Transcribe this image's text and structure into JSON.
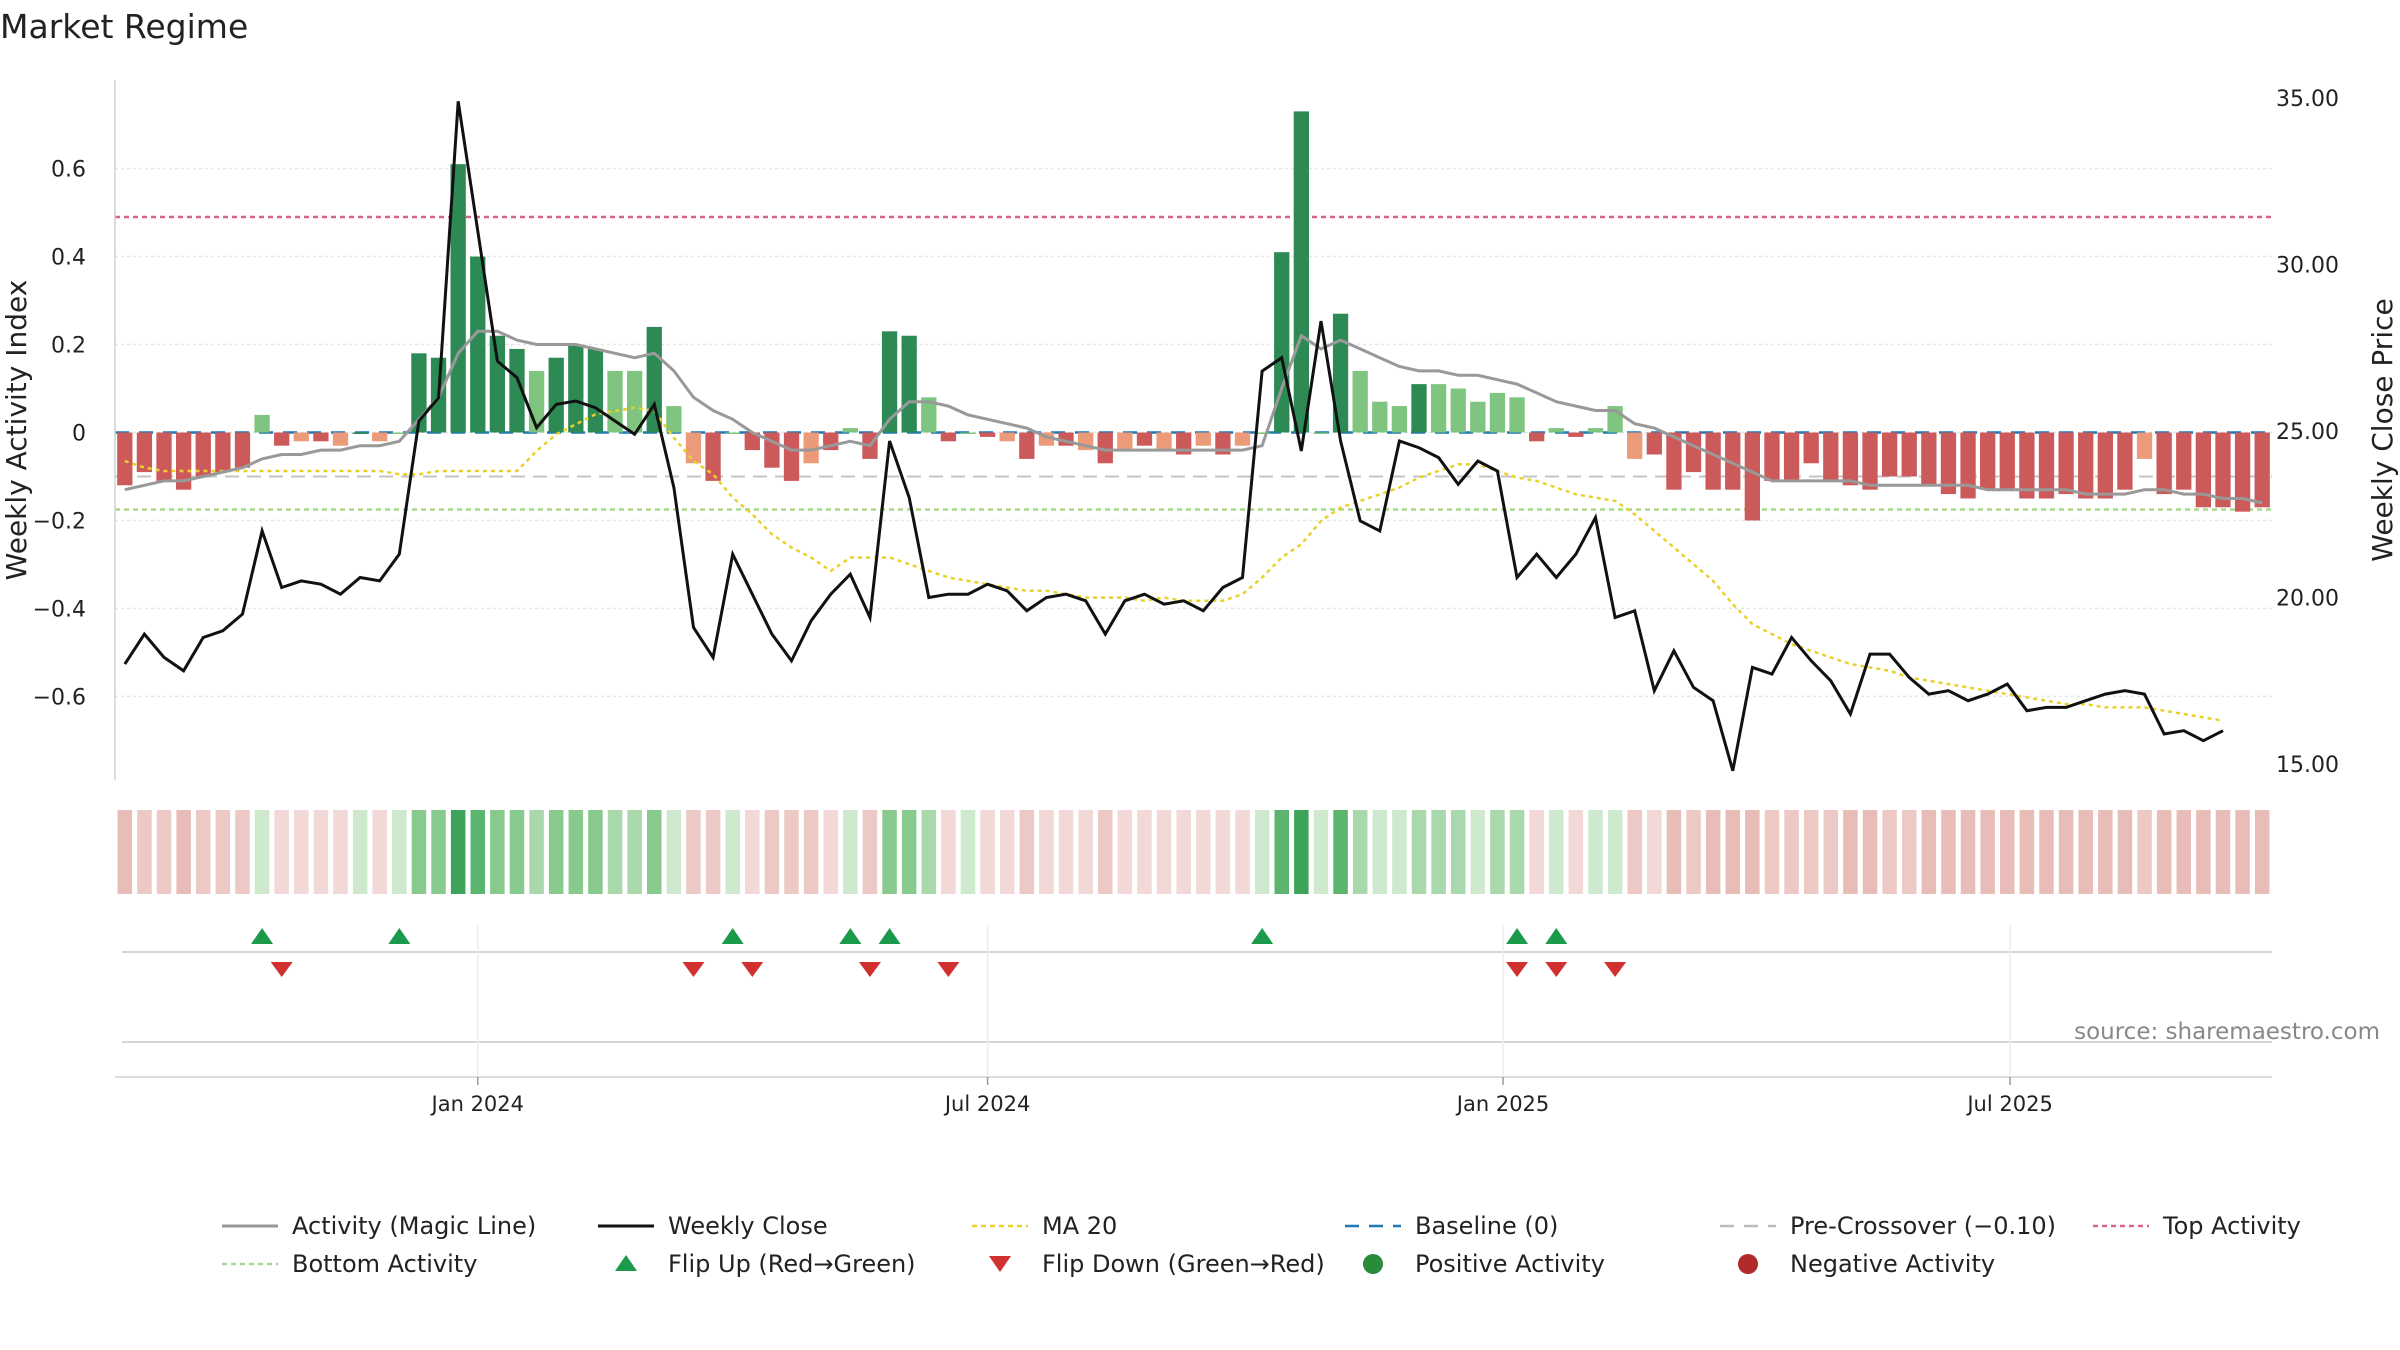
{
  "chart_data": {
    "type": "bar",
    "title": "Market Regime",
    "ylabel_left": "Weekly Activity Index",
    "ylabel_right": "Weekly Close Price",
    "source": "source: sharemaestro.com",
    "x_start": "2023-08-28",
    "x_step_days": 7,
    "date_ticks": [
      {
        "label": "Jan 2024",
        "date": "2024-01-01"
      },
      {
        "label": "Jul 2024",
        "date": "2024-07-01"
      },
      {
        "label": "Jan 2025",
        "date": "2025-01-01"
      },
      {
        "label": "Jul 2025",
        "date": "2025-07-01"
      }
    ],
    "left_axis": {
      "ticks": [
        "0.6",
        "0.4",
        "0.2",
        "0",
        "−0.2",
        "−0.4",
        "−0.6"
      ],
      "tick_values": [
        0.6,
        0.4,
        0.2,
        0,
        -0.2,
        -0.4,
        -0.6
      ],
      "ylim": [
        -0.79,
        0.79
      ]
    },
    "right_axis": {
      "ticks": [
        "35.00",
        "30.00",
        "25.00",
        "20.00",
        "15.00"
      ],
      "tick_values": [
        35,
        30,
        25,
        20,
        15
      ],
      "ylim": [
        15,
        35
      ]
    },
    "reference_lines": {
      "top_activity": 0.49,
      "bottom_activity": -0.175,
      "pre_crossover": -0.1,
      "baseline": 0
    },
    "activity": [
      -0.12,
      -0.09,
      -0.11,
      -0.13,
      -0.1,
      -0.09,
      -0.08,
      0.04,
      -0.03,
      -0.02,
      -0.02,
      -0.03,
      0.0,
      -0.02,
      0.0,
      0.18,
      0.17,
      0.61,
      0.4,
      0.22,
      0.19,
      0.14,
      0.17,
      0.2,
      0.19,
      0.14,
      0.14,
      0.24,
      0.06,
      -0.07,
      -0.11,
      0.0,
      -0.04,
      -0.08,
      -0.11,
      -0.07,
      -0.04,
      0.01,
      -0.06,
      0.23,
      0.22,
      0.08,
      -0.02,
      0.0,
      -0.01,
      -0.02,
      -0.06,
      -0.03,
      -0.03,
      -0.04,
      -0.07,
      -0.04,
      -0.03,
      -0.04,
      -0.05,
      -0.03,
      -0.05,
      -0.03,
      0.0,
      0.41,
      0.73,
      0.0,
      0.27,
      0.14,
      0.07,
      0.06,
      0.11,
      0.11,
      0.1,
      0.07,
      0.09,
      0.08,
      -0.02,
      0.01,
      -0.01,
      0.01,
      0.06,
      -0.06,
      -0.05,
      -0.13,
      -0.09,
      -0.13,
      -0.13,
      -0.2,
      -0.11,
      -0.11,
      -0.07,
      -0.11,
      -0.12,
      -0.13,
      -0.1,
      -0.1,
      -0.12,
      -0.14,
      -0.15,
      -0.13,
      -0.13,
      -0.15,
      -0.15,
      -0.14,
      -0.15,
      -0.15,
      -0.13,
      -0.06,
      -0.14,
      -0.13,
      -0.17,
      -0.17,
      -0.18,
      -0.17
    ],
    "activity_line": [
      -0.13,
      -0.12,
      -0.11,
      -0.11,
      -0.1,
      -0.09,
      -0.08,
      -0.06,
      -0.05,
      -0.05,
      -0.04,
      -0.04,
      -0.03,
      -0.03,
      -0.02,
      0.03,
      0.08,
      0.18,
      0.23,
      0.23,
      0.21,
      0.2,
      0.2,
      0.2,
      0.19,
      0.18,
      0.17,
      0.18,
      0.14,
      0.08,
      0.05,
      0.03,
      0.0,
      -0.02,
      -0.04,
      -0.04,
      -0.03,
      -0.02,
      -0.03,
      0.03,
      0.07,
      0.07,
      0.06,
      0.04,
      0.03,
      0.02,
      0.01,
      -0.01,
      -0.02,
      -0.03,
      -0.04,
      -0.04,
      -0.04,
      -0.04,
      -0.04,
      -0.04,
      -0.04,
      -0.04,
      -0.03,
      0.1,
      0.22,
      0.19,
      0.21,
      0.19,
      0.17,
      0.15,
      0.14,
      0.14,
      0.13,
      0.13,
      0.12,
      0.11,
      0.09,
      0.07,
      0.06,
      0.05,
      0.05,
      0.02,
      0.01,
      -0.01,
      -0.03,
      -0.05,
      -0.07,
      -0.09,
      -0.11,
      -0.11,
      -0.11,
      -0.11,
      -0.11,
      -0.12,
      -0.12,
      -0.12,
      -0.12,
      -0.12,
      -0.12,
      -0.13,
      -0.13,
      -0.13,
      -0.13,
      -0.13,
      -0.14,
      -0.14,
      -0.14,
      -0.13,
      -0.13,
      -0.14,
      -0.14,
      -0.15,
      -0.15,
      -0.16
    ],
    "weekly_close": [
      18.0,
      18.9,
      18.2,
      17.8,
      18.8,
      19.0,
      19.5,
      22.0,
      20.3,
      20.5,
      20.4,
      20.1,
      20.6,
      20.5,
      21.3,
      25.3,
      26.0,
      34.9,
      31.0,
      27.1,
      26.6,
      25.1,
      25.8,
      25.9,
      25.7,
      25.3,
      24.9,
      25.8,
      23.3,
      19.1,
      18.2,
      21.3,
      20.1,
      18.9,
      18.1,
      19.3,
      20.1,
      20.7,
      19.4,
      24.7,
      23.0,
      20.0,
      20.1,
      20.1,
      20.4,
      20.2,
      19.6,
      20.0,
      20.1,
      19.9,
      18.9,
      19.9,
      20.1,
      19.8,
      19.9,
      19.6,
      20.3,
      20.6,
      26.8,
      27.2,
      24.4,
      28.3,
      24.7,
      22.3,
      22.0,
      24.7,
      24.5,
      24.2,
      23.4,
      24.1,
      23.8,
      20.6,
      21.3,
      20.6,
      21.3,
      22.4,
      19.4,
      19.6,
      17.2,
      18.4,
      17.3,
      16.9,
      14.8,
      17.9,
      17.7,
      18.8,
      18.1,
      17.5,
      16.5,
      18.3,
      18.3,
      17.6,
      17.1,
      17.2,
      16.9,
      17.1,
      17.4,
      16.6,
      16.7,
      16.7,
      16.9,
      17.1,
      17.2,
      17.1,
      15.9,
      16.0,
      15.7,
      16.0
    ],
    "ma20": [
      24.1,
      23.9,
      23.8,
      23.8,
      23.8,
      23.8,
      23.8,
      23.8,
      23.8,
      23.8,
      23.8,
      23.8,
      23.8,
      23.8,
      23.7,
      23.7,
      23.8,
      23.8,
      23.8,
      23.8,
      23.8,
      24.4,
      24.9,
      25.2,
      25.5,
      25.6,
      25.7,
      25.6,
      24.8,
      24.1,
      23.7,
      23.0,
      22.5,
      21.9,
      21.5,
      21.2,
      20.8,
      21.2,
      21.2,
      21.2,
      21.0,
      20.8,
      20.6,
      20.5,
      20.4,
      20.3,
      20.2,
      20.2,
      20.1,
      20.0,
      20.0,
      20.0,
      19.9,
      20.0,
      19.9,
      19.9,
      19.9,
      20.1,
      20.6,
      21.2,
      21.6,
      22.3,
      22.7,
      22.9,
      23.1,
      23.3,
      23.6,
      23.8,
      24.0,
      24.0,
      23.8,
      23.6,
      23.5,
      23.3,
      23.1,
      23.0,
      22.9,
      22.5,
      22.0,
      21.5,
      21.0,
      20.5,
      19.8,
      19.2,
      18.9,
      18.6,
      18.4,
      18.2,
      18.0,
      17.9,
      17.8,
      17.6,
      17.5,
      17.4,
      17.3,
      17.2,
      17.1,
      17.0,
      16.9,
      16.8,
      16.8,
      16.7,
      16.7,
      16.7,
      16.6,
      16.5,
      16.4,
      16.3
    ],
    "flips_up_index": [
      7,
      14,
      31,
      37,
      39,
      58,
      71,
      73
    ],
    "flips_down_index": [
      8,
      29,
      32,
      38,
      42,
      71,
      73,
      76
    ],
    "legend": [
      {
        "label": "Activity (Magic Line)",
        "kind": "line",
        "color": "#999999"
      },
      {
        "label": "Weekly Close",
        "kind": "line",
        "color": "#111111"
      },
      {
        "label": "MA 20",
        "kind": "dotted",
        "color": "#e8d22a"
      },
      {
        "label": "Baseline (0)",
        "kind": "dashed",
        "color": "#1f77b4"
      },
      {
        "label": "Pre-Crossover (−0.10)",
        "kind": "dashed",
        "color": "#bbbbbb"
      },
      {
        "label": "Top Activity",
        "kind": "dotted",
        "color": "#d9648a"
      },
      {
        "label": "Bottom Activity",
        "kind": "dotted",
        "color": "#a8d88a"
      },
      {
        "label": "Flip Up (Red→Green)",
        "kind": "tri-up",
        "color": "#1a9a4a"
      },
      {
        "label": "Flip Down (Green→Red)",
        "kind": "tri-down",
        "color": "#d03030"
      },
      {
        "label": "Positive Activity",
        "kind": "dot",
        "color": "#2a8c3a"
      },
      {
        "label": "Negative Activity",
        "kind": "dot",
        "color": "#b22a2a"
      }
    ],
    "colors": {
      "pos_strong": "#2d8a55",
      "pos_light": "#7fc47f",
      "neg_strong": "#cc5a5a",
      "neg_light": "#ec9b7a",
      "close": "#111111",
      "magic": "#999999",
      "ma": "#e8d22a"
    }
  }
}
